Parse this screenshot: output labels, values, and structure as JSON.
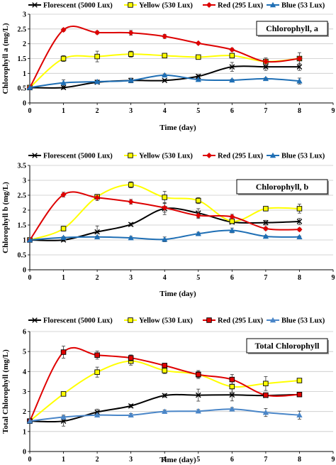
{
  "chart_data": [
    {
      "type": "line",
      "panel_label": "Chlorophyll, a",
      "xlabel": "Time (day)",
      "ylabel": "Chlorophyll a (mg/L)",
      "xlim": [
        0,
        9
      ],
      "ylim": [
        0,
        3
      ],
      "x_ticks": [
        "0",
        "1",
        "2",
        "3",
        "4",
        "5",
        "6",
        "7",
        "8",
        "9"
      ],
      "y_ticks": [
        "0",
        "0.5",
        "1",
        "1.5",
        "2",
        "2.5",
        "3"
      ],
      "grid": true,
      "legend_position": "top",
      "series": [
        {
          "name": "Florescent  (5000 Lux)",
          "color": "#000000",
          "marker": "x",
          "x": [
            0,
            1,
            2,
            3,
            4,
            5,
            6,
            7,
            8
          ],
          "values": [
            0.52,
            0.52,
            0.7,
            0.76,
            0.76,
            0.9,
            1.22,
            1.22,
            1.22
          ],
          "errors": [
            0.03,
            0.05,
            0.05,
            0.05,
            0.04,
            0.06,
            0.15,
            0.12,
            0.12
          ]
        },
        {
          "name": "Yellow (530 Lux)",
          "color": "#ffff00",
          "marker": "square",
          "x": [
            0,
            1,
            2,
            3,
            4,
            5,
            6,
            7,
            8
          ],
          "values": [
            0.52,
            1.5,
            1.57,
            1.65,
            1.6,
            1.55,
            1.6,
            1.4,
            1.5
          ],
          "errors": [
            0.03,
            0.1,
            0.18,
            0.1,
            0.05,
            0.05,
            0.08,
            0.12,
            0.2
          ]
        },
        {
          "name": "Red (295 Lux)",
          "color": "#dd0000",
          "marker": "diamond",
          "x": [
            0,
            1,
            2,
            3,
            4,
            5,
            6,
            7,
            8
          ],
          "values": [
            0.52,
            2.47,
            2.38,
            2.37,
            2.25,
            2.02,
            1.8,
            1.4,
            1.5
          ],
          "errors": [
            0.03,
            0.05,
            0.05,
            0.08,
            0.07,
            0.03,
            0.05,
            0.08,
            0.05
          ]
        },
        {
          "name": "Blue (53 Lux)",
          "color": "#1f6fb5",
          "marker": "triangle",
          "x": [
            0,
            1,
            2,
            3,
            4,
            5,
            6,
            7,
            8
          ],
          "values": [
            0.52,
            0.68,
            0.72,
            0.76,
            0.94,
            0.79,
            0.77,
            0.82,
            0.74
          ],
          "errors": [
            0.03,
            0.1,
            0.05,
            0.08,
            0.04,
            0.03,
            0.03,
            0.03,
            0.1
          ]
        }
      ]
    },
    {
      "type": "line",
      "panel_label": "Chlorophyll, b",
      "xlabel": "Time (day)",
      "ylabel": "Chlorophyll b (mg/L)",
      "xlim": [
        0,
        9
      ],
      "ylim": [
        0,
        3.5
      ],
      "x_ticks": [
        "0",
        "1",
        "2",
        "3",
        "4",
        "5",
        "6",
        "7",
        "8",
        "9"
      ],
      "y_ticks": [
        "0",
        "0.5",
        "1",
        "1.5",
        "2",
        "2.5",
        "3",
        "3.5"
      ],
      "grid": true,
      "legend_position": "top",
      "series": [
        {
          "name": "Florescent  (5000 Lux)",
          "color": "#000000",
          "marker": "x",
          "x": [
            0,
            1,
            2,
            3,
            4,
            5,
            6,
            7,
            8
          ],
          "values": [
            1.0,
            1.0,
            1.27,
            1.52,
            2.05,
            1.9,
            1.6,
            1.58,
            1.62
          ],
          "errors": [
            0.03,
            0.05,
            0.2,
            0.05,
            0.2,
            0.15,
            0.05,
            0.08,
            0.1
          ]
        },
        {
          "name": "Yellow (530 Lux)",
          "color": "#ffff00",
          "marker": "square",
          "x": [
            0,
            1,
            2,
            3,
            4,
            5,
            6,
            7,
            8
          ],
          "values": [
            1.0,
            1.38,
            2.45,
            2.85,
            2.43,
            2.32,
            1.63,
            2.05,
            2.05
          ],
          "errors": [
            0.03,
            0.08,
            0.05,
            0.1,
            0.2,
            0.1,
            0.08,
            0.05,
            0.15
          ]
        },
        {
          "name": "Red (295 Lux)",
          "color": "#dd0000",
          "marker": "diamond",
          "x": [
            0,
            1,
            2,
            3,
            4,
            5,
            6,
            7,
            8
          ],
          "values": [
            1.0,
            2.52,
            2.42,
            2.28,
            2.08,
            1.82,
            1.78,
            1.38,
            1.35
          ],
          "errors": [
            0.03,
            0.08,
            0.1,
            0.08,
            0.15,
            0.1,
            0.08,
            0.05,
            0.05
          ]
        },
        {
          "name": "Blue (53 Lux)",
          "color": "#1f6fb5",
          "marker": "triangle",
          "x": [
            0,
            1,
            2,
            3,
            4,
            5,
            6,
            7,
            8
          ],
          "values": [
            1.0,
            1.08,
            1.1,
            1.07,
            1.02,
            1.21,
            1.32,
            1.12,
            1.1
          ],
          "errors": [
            0.03,
            0.03,
            0.03,
            0.05,
            0.08,
            0.05,
            0.08,
            0.03,
            0.03
          ]
        }
      ]
    },
    {
      "type": "line",
      "panel_label": "Total Chlorophyll",
      "xlabel": "Time (day)",
      "ylabel": "Total Chlorophyll (mg/L)",
      "xlim": [
        0,
        9
      ],
      "ylim": [
        0,
        6
      ],
      "x_ticks": [
        "0",
        "1",
        "2",
        "3",
        "4",
        "5",
        "6",
        "7",
        "8",
        "9"
      ],
      "y_ticks": [
        "0",
        "1",
        "2",
        "3",
        "4",
        "5",
        "6"
      ],
      "grid": true,
      "legend_position": "top",
      "series": [
        {
          "name": "Florescent  (5000 Lux)",
          "color": "#000000",
          "marker": "x",
          "x": [
            0,
            1,
            2,
            3,
            4,
            5,
            6,
            7,
            8
          ],
          "values": [
            1.52,
            1.52,
            1.97,
            2.28,
            2.8,
            2.82,
            2.83,
            2.8,
            2.85
          ],
          "errors": [
            0.05,
            0.25,
            0.15,
            0.08,
            0.08,
            0.3,
            0.3,
            0.1,
            0.1
          ]
        },
        {
          "name": "Yellow (530 Lux)",
          "color": "#ffff00",
          "marker": "square",
          "x": [
            0,
            1,
            2,
            3,
            4,
            5,
            6,
            7,
            8
          ],
          "values": [
            1.52,
            2.88,
            3.97,
            4.52,
            4.05,
            3.85,
            3.25,
            3.4,
            3.55
          ],
          "errors": [
            0.05,
            0.1,
            0.25,
            0.2,
            0.15,
            0.15,
            0.3,
            0.35,
            0.1
          ]
        },
        {
          "name": "Red (295 Lux)",
          "color": "#e00000",
          "marker": "square",
          "x": [
            0,
            1,
            2,
            3,
            4,
            5,
            6,
            7,
            8
          ],
          "values": [
            1.52,
            4.97,
            4.82,
            4.68,
            4.3,
            3.85,
            3.6,
            2.82,
            2.85
          ],
          "errors": [
            0.05,
            0.3,
            0.2,
            0.15,
            0.1,
            0.2,
            0.25,
            0.1,
            0.05
          ]
        },
        {
          "name": "Blue (53 Lux)",
          "color": "#4a86c8",
          "marker": "triangle",
          "x": [
            0,
            1,
            2,
            3,
            4,
            5,
            6,
            7,
            8
          ],
          "values": [
            1.52,
            1.72,
            1.82,
            1.82,
            2.0,
            2.02,
            2.12,
            1.95,
            1.82
          ],
          "errors": [
            0.05,
            0.1,
            0.1,
            0.08,
            0.08,
            0.08,
            0.08,
            0.2,
            0.2
          ]
        }
      ]
    }
  ]
}
